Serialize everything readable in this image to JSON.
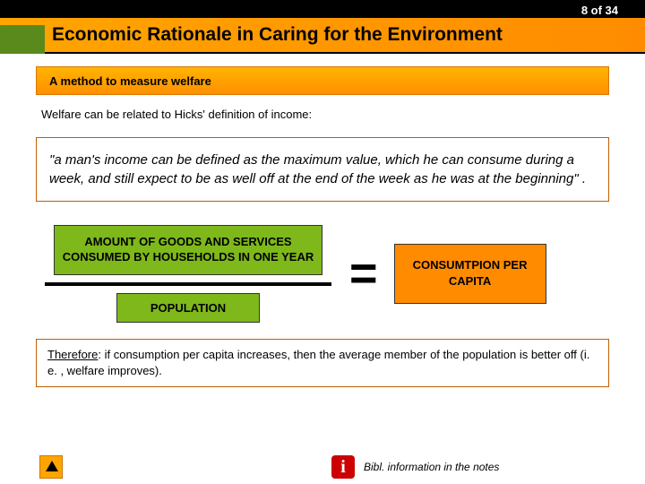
{
  "colors": {
    "header_bg": "#000000",
    "title_gradient_from": "#ffa500",
    "title_gradient_to": "#ff8c00",
    "green_box": "#7eb81b",
    "orange_box": "#ff8c00",
    "quote_border": "#c06000",
    "info_bg": "#cc0000"
  },
  "page": {
    "counter": "8 of 34",
    "title": "Economic Rationale in Caring for the Environment"
  },
  "subheader": "A method to measure welfare",
  "intro": "Welfare can be related to Hicks' definition of income:",
  "quote": "\"a man's income can be defined as the maximum value, which he can consume during a week, and still expect to be as well off at the end of the week as he was at the beginning\" .",
  "equation": {
    "numerator": "AMOUNT OF GOODS AND SERVICES CONSUMED BY HOUSEHOLDS IN ONE YEAR",
    "denominator": "POPULATION",
    "equals": "=",
    "result": "CONSUMTPION PER CAPITA"
  },
  "therefore": {
    "label": "Therefore",
    "rest": ": if consumption per capita increases, then the average member of the population is better off (i. e. , welfare improves)."
  },
  "footer": {
    "info_glyph": "i",
    "bibl": "Bibl. information in the notes"
  }
}
